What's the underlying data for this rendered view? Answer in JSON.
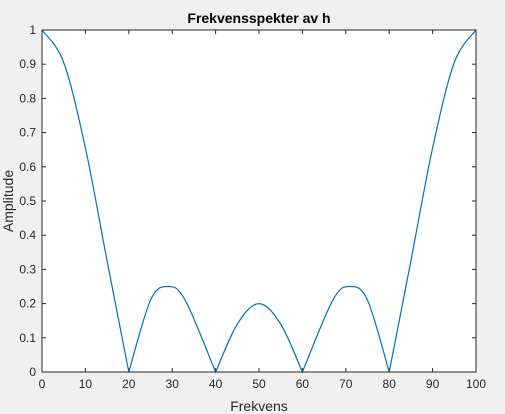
{
  "chart_data": {
    "type": "line",
    "title": "Frekvensspekter av h",
    "xlabel": "Frekvens",
    "ylabel": "Amplitude",
    "xlim": [
      0,
      100
    ],
    "ylim": [
      0,
      1
    ],
    "xticks": [
      0,
      10,
      20,
      30,
      40,
      50,
      60,
      70,
      80,
      90,
      100
    ],
    "yticks": [
      0,
      0.1,
      0.2,
      0.3,
      0.4,
      0.5,
      0.6,
      0.7,
      0.8,
      0.9,
      1
    ],
    "grid": false,
    "series": [
      {
        "color": "#0072bd",
        "x": [
          0,
          5,
          10,
          15,
          20,
          25,
          29,
          33,
          40,
          45,
          50,
          55,
          60,
          67,
          71,
          75,
          80,
          85,
          90,
          95,
          100
        ],
        "y": [
          1,
          0.905,
          0.655,
          0.325,
          0,
          0.21,
          0.25,
          0.21,
          0,
          0.14,
          0.2,
          0.14,
          0,
          0.21,
          0.25,
          0.21,
          0,
          0.325,
          0.655,
          0.905,
          1
        ]
      }
    ]
  }
}
